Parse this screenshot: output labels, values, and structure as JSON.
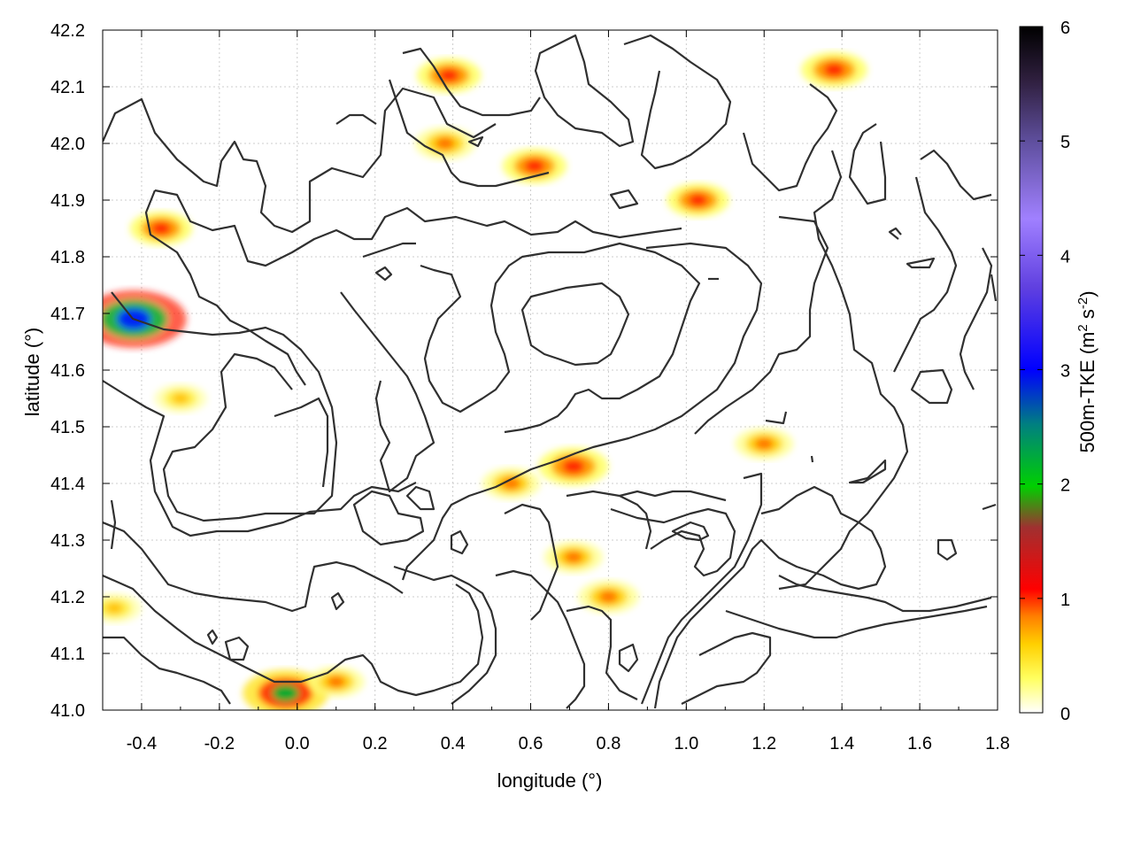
{
  "chart_data": {
    "type": "heatmap",
    "title": "",
    "xlabel": "longitude (°)",
    "ylabel": "latitude (°)",
    "xlim": [
      -0.5,
      1.8
    ],
    "ylim": [
      41.0,
      42.2
    ],
    "x_ticks": [
      "-0.4",
      "-0.2",
      "0.0",
      "0.2",
      "0.4",
      "0.6",
      "0.8",
      "1.0",
      "1.2",
      "1.4",
      "1.6",
      "1.8"
    ],
    "y_ticks": [
      "41.0",
      "41.1",
      "41.2",
      "41.3",
      "41.4",
      "41.5",
      "41.6",
      "41.7",
      "41.8",
      "41.9",
      "42.0",
      "42.1",
      "42.2"
    ],
    "grid": true,
    "colorbar": {
      "label": "500m-TKE (m² s⁻²)",
      "range": [
        0,
        6
      ],
      "ticks": [
        "0",
        "1",
        "2",
        "3",
        "4",
        "5",
        "6"
      ],
      "colors": [
        "#ffffff",
        "#ffff00",
        "#ffa500",
        "#ff0000",
        "#800000",
        "#00c000",
        "#0000ff",
        "#8000ff",
        "#c0a0ff",
        "#000000"
      ]
    },
    "hotspots": [
      {
        "lon": -0.42,
        "lat": 41.69,
        "tke": 3.0
      },
      {
        "lon": -0.35,
        "lat": 41.85,
        "tke": 0.8
      },
      {
        "lon": -0.3,
        "lat": 41.55,
        "tke": 0.3
      },
      {
        "lon": -0.03,
        "lat": 41.03,
        "tke": 2.0
      },
      {
        "lon": 0.39,
        "lat": 42.12,
        "tke": 0.9
      },
      {
        "lon": 0.38,
        "lat": 42.0,
        "tke": 0.7
      },
      {
        "lon": 0.61,
        "lat": 41.96,
        "tke": 0.9
      },
      {
        "lon": 0.71,
        "lat": 41.43,
        "tke": 1.2
      },
      {
        "lon": 0.55,
        "lat": 41.4,
        "tke": 0.6
      },
      {
        "lon": 0.8,
        "lat": 41.2,
        "tke": 0.7
      },
      {
        "lon": 1.03,
        "lat": 41.9,
        "tke": 0.8
      },
      {
        "lon": 1.38,
        "lat": 42.13,
        "tke": 1.0
      },
      {
        "lon": 1.2,
        "lat": 41.47,
        "tke": 0.6
      },
      {
        "lon": 0.71,
        "lat": 41.27,
        "tke": 0.6
      },
      {
        "lon": -0.47,
        "lat": 41.18,
        "tke": 0.4
      },
      {
        "lon": 0.1,
        "lat": 41.05,
        "tke": 0.5
      }
    ]
  }
}
